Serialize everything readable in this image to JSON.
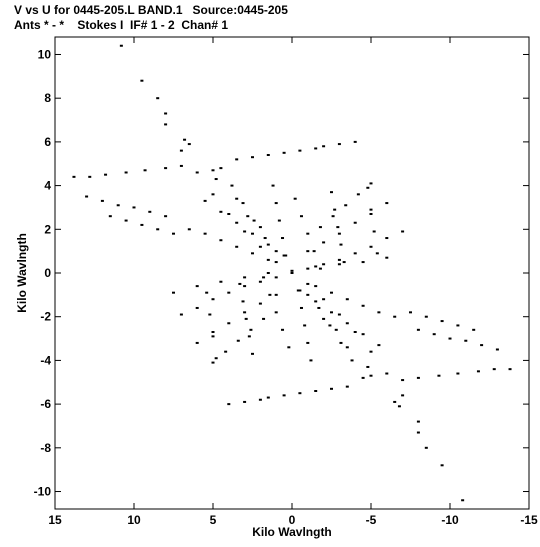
{
  "header": {
    "line1": "V vs U for 0445-205.L BAND.1   Source:0445-205",
    "line2": "Ants * - *    Stokes I  IF# 1 - 2  Chan# 1"
  },
  "chart_data": {
    "type": "scatter",
    "xlabel": "Kilo Wavlngth",
    "ylabel": "Kilo Wavlngth",
    "xlim": [
      15,
      -15
    ],
    "ylim": [
      -10.8,
      10.8
    ],
    "xticks": [
      15,
      10,
      5,
      0,
      -5,
      -10,
      -15
    ],
    "yticks": [
      -10,
      -8,
      -6,
      -4,
      -2,
      0,
      2,
      4,
      6,
      8,
      10
    ],
    "xtick_labels": [
      "15",
      "10",
      "5",
      "0",
      "-5",
      "-10",
      "-15"
    ],
    "ytick_labels": [
      "-10",
      "-8",
      "-6",
      "-4",
      "-2",
      "0",
      "2",
      "4",
      "6",
      "8",
      "10"
    ],
    "grid": false,
    "series": [
      {
        "marker_color": "#000000",
        "tracks": [
          {
            "x": [
              10.8,
              8.5,
              6.8,
              4.8,
              2.8,
              1.0,
              0.0,
              -1.0,
              -2.8,
              -4.8,
              -6.8,
              -8.5,
              -10.8
            ],
            "y": [
              10.4,
              8.0,
              6.1,
              4.3,
              2.6,
              1.0,
              0.0,
              -1.0,
              -2.6,
              -4.3,
              -6.1,
              -8.0,
              -10.4
            ]
          },
          {
            "x": [
              9.5,
              8.0,
              6.5,
              5.0,
              3.5,
              2.0,
              0.5
            ],
            "y": [
              8.8,
              7.3,
              5.9,
              4.7,
              3.4,
              2.1,
              0.8
            ]
          },
          {
            "x": [
              -0.5,
              -2.0,
              -3.5,
              -5.0,
              -6.5,
              -8.0,
              -9.5
            ],
            "y": [
              -0.8,
              -2.1,
              -3.4,
              -4.7,
              -5.9,
              -7.3,
              -8.8
            ]
          },
          {
            "x": [
              8.0,
              7.0,
              6.0,
              5.0,
              4.0,
              3.0,
              2.0,
              1.0
            ],
            "y": [
              6.8,
              5.6,
              4.6,
              3.6,
              2.7,
              1.9,
              1.2,
              0.5
            ]
          },
          {
            "x": [
              -1.0,
              -2.0,
              -3.0,
              -4.0,
              -5.0,
              -6.0,
              -7.0,
              -8.0
            ],
            "y": [
              -0.5,
              -1.2,
              -1.9,
              -2.7,
              -3.6,
              -4.6,
              -5.6,
              -6.8
            ]
          },
          {
            "x": [
              13.8,
              12.8,
              11.8,
              10.5,
              9.3,
              8.0,
              7.0
            ],
            "y": [
              4.4,
              4.4,
              4.5,
              4.6,
              4.7,
              4.8,
              4.9
            ]
          },
          {
            "x": [
              -7.0,
              -8.0,
              -9.3,
              -10.5,
              -11.8,
              -12.8,
              -13.8
            ],
            "y": [
              -4.9,
              -4.8,
              -4.7,
              -4.6,
              -4.5,
              -4.4,
              -4.4
            ]
          },
          {
            "x": [
              13.0,
              12.0,
              11.0,
              10.0,
              9.0,
              8.0
            ],
            "y": [
              3.5,
              3.3,
              3.1,
              3.0,
              2.8,
              2.6
            ]
          },
          {
            "x": [
              -8.0,
              -9.0,
              -10.0,
              -11.0,
              -12.0,
              -13.0
            ],
            "y": [
              -2.6,
              -2.8,
              -3.0,
              -3.1,
              -3.3,
              -3.5
            ]
          },
          {
            "x": [
              11.5,
              10.5,
              9.5,
              8.5,
              7.5
            ],
            "y": [
              2.6,
              2.4,
              2.2,
              2.0,
              1.8
            ]
          },
          {
            "x": [
              -7.5,
              -8.5,
              -9.5,
              -10.5,
              -11.5
            ],
            "y": [
              -1.8,
              -2.0,
              -2.2,
              -2.4,
              -2.6
            ]
          },
          {
            "x": [
              3.5,
              2.5,
              1.5,
              0.5,
              -0.5,
              -1.5
            ],
            "y": [
              5.2,
              5.3,
              5.4,
              5.5,
              5.6,
              5.7
            ]
          },
          {
            "x": [
              -2.0,
              -3.0,
              -4.0
            ],
            "y": [
              5.8,
              5.9,
              6.0
            ]
          },
          {
            "x": [
              -3.5,
              -2.5,
              -1.5,
              -0.5,
              0.5,
              1.5
            ],
            "y": [
              -5.2,
              -5.3,
              -5.4,
              -5.5,
              -5.6,
              -5.7
            ]
          },
          {
            "x": [
              2.0,
              3.0,
              4.0
            ],
            "y": [
              -5.8,
              -5.9,
              -6.0
            ]
          },
          {
            "x": [
              7.5,
              6.0,
              4.5,
              3.0,
              1.5,
              0.0,
              -1.5,
              -3.0,
              -4.5,
              -6.0
            ],
            "y": [
              -0.9,
              -0.6,
              -0.4,
              -0.2,
              0.0,
              0.1,
              0.3,
              0.4,
              0.5,
              0.7
            ]
          },
          {
            "x": [
              7.0,
              6.0,
              5.0,
              4.0,
              3.0,
              2.0,
              1.0
            ],
            "y": [
              -1.9,
              -1.6,
              -1.2,
              -0.9,
              -0.6,
              -0.4,
              -0.2
            ]
          },
          {
            "x": [
              -1.0,
              -2.0,
              -3.0,
              -4.0,
              -5.0,
              -6.0,
              -7.0
            ],
            "y": [
              0.2,
              0.4,
              0.6,
              0.9,
              1.2,
              1.6,
              1.9
            ]
          },
          {
            "x": [
              6.0,
              5.0,
              4.0,
              3.0,
              2.0,
              1.0
            ],
            "y": [
              -3.2,
              -2.7,
              -2.3,
              -1.8,
              -1.4,
              -1.0
            ]
          },
          {
            "x": [
              -1.0,
              -2.0,
              -3.0,
              -4.0,
              -5.0,
              -6.0
            ],
            "y": [
              1.0,
              1.4,
              1.8,
              2.3,
              2.7,
              3.2
            ]
          },
          {
            "x": [
              5.0,
              4.2,
              3.4,
              2.6,
              1.8
            ],
            "y": [
              -4.1,
              -3.6,
              -3.1,
              -2.6,
              -2.1
            ]
          },
          {
            "x": [
              -1.8,
              -2.6,
              -3.4,
              -4.2,
              -5.0
            ],
            "y": [
              2.1,
              2.6,
              3.1,
              3.6,
              4.1
            ]
          },
          {
            "x": [
              6.5,
              5.5,
              4.5,
              3.5,
              2.5,
              1.5
            ],
            "y": [
              2.0,
              1.8,
              1.5,
              1.2,
              0.9,
              0.6
            ]
          },
          {
            "x": [
              -1.5,
              -2.5,
              -3.5,
              -4.5,
              -5.5,
              -6.5
            ],
            "y": [
              -0.6,
              -0.9,
              -1.2,
              -1.5,
              -1.8,
              -2.0
            ]
          },
          {
            "x": [
              5.5,
              4.5,
              3.5,
              2.5,
              1.5
            ],
            "y": [
              3.3,
              2.8,
              2.3,
              1.8,
              1.3
            ]
          },
          {
            "x": [
              -1.5,
              -2.5,
              -3.5,
              -4.5,
              -5.5
            ],
            "y": [
              -1.3,
              -1.8,
              -2.3,
              -2.8,
              -3.3
            ]
          },
          {
            "x": [
              4.5,
              3.8,
              3.1,
              2.4,
              1.7
            ],
            "y": [
              4.8,
              4.0,
              3.2,
              2.4,
              1.6
            ]
          },
          {
            "x": [
              -1.7,
              -2.4,
              -3.1,
              -3.8,
              -4.5
            ],
            "y": [
              -1.6,
              -2.4,
              -3.2,
              -4.0,
              -4.8
            ]
          },
          {
            "x": [
              -0.2,
              -0.6,
              -1.0,
              -1.4,
              -1.8
            ],
            "y": [
              3.4,
              2.6,
              1.8,
              1.0,
              0.2
            ]
          },
          {
            "x": [
              0.2,
              0.6,
              1.0,
              1.4,
              1.8
            ],
            "y": [
              -3.4,
              -2.6,
              -1.8,
              -1.0,
              -0.2
            ]
          },
          {
            "x": [
              -2.5,
              -2.7,
              -2.9,
              -3.1,
              -3.3
            ],
            "y": [
              3.7,
              2.9,
              2.1,
              1.3,
              0.5
            ]
          },
          {
            "x": [
              2.5,
              2.7,
              2.9,
              3.1,
              3.3
            ],
            "y": [
              -3.7,
              -2.9,
              -2.1,
              -1.3,
              -0.5
            ]
          },
          {
            "x": [
              -4.8,
              -5.0,
              -5.2,
              -5.4
            ],
            "y": [
              3.9,
              2.9,
              1.9,
              0.9
            ]
          },
          {
            "x": [
              4.8,
              5.0,
              5.2,
              5.4
            ],
            "y": [
              -3.9,
              -2.9,
              -1.9,
              -0.9
            ]
          },
          {
            "x": [
              1.2,
              1.0,
              0.8,
              0.6,
              0.4
            ],
            "y": [
              4.0,
              3.2,
              2.4,
              1.6,
              0.8
            ]
          },
          {
            "x": [
              -1.2,
              -1.0,
              -0.8,
              -0.6,
              -0.4
            ],
            "y": [
              -4.0,
              -3.2,
              -2.4,
              -1.6,
              -0.8
            ]
          }
        ]
      }
    ]
  }
}
